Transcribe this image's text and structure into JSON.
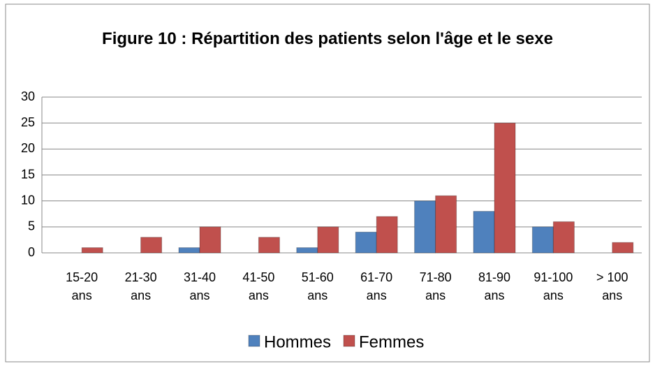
{
  "chart_data": {
    "type": "bar",
    "title": "Figure 10 : Répartition des patients selon l'âge et le sexe",
    "categories": [
      "15-20 ans",
      "21-30 ans",
      "31-40 ans",
      "41-50 ans",
      "51-60 ans",
      "61-70 ans",
      "71-80 ans",
      "81-90 ans",
      "91-100 ans",
      "> 100 ans"
    ],
    "series": [
      {
        "name": "Hommes",
        "color": "#4f81bd",
        "values": [
          0,
          0,
          1,
          0,
          1,
          4,
          10,
          8,
          5,
          0
        ]
      },
      {
        "name": "Femmes",
        "color": "#c0504d",
        "values": [
          1,
          3,
          5,
          3,
          5,
          7,
          11,
          25,
          6,
          2
        ]
      }
    ],
    "ylim": [
      0,
      30
    ],
    "yticks": [
      0,
      5,
      10,
      15,
      20,
      25,
      30
    ],
    "grid": true,
    "legend": "bottom"
  }
}
